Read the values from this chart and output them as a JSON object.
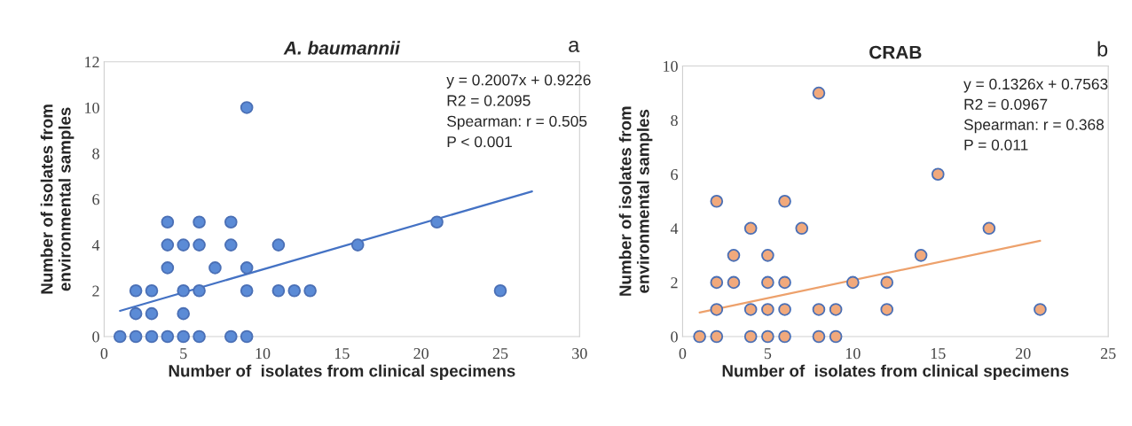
{
  "chart_data": [
    {
      "type": "scatter",
      "title": "A. baumannii",
      "xlabel": "Number of  isolates from clinical specimens",
      "ylabel": "Number of isolates from\nenvironmental samples",
      "annotations": [
        "y = 0.2007x + 0.9226",
        "R2 = 0.2095",
        "Spearman: r = 0.505",
        "P < 0.001",
        "a"
      ],
      "series": [
        {
          "color": "#5b8bd6",
          "marker": "circle",
          "x": [
            1,
            2,
            3,
            4,
            5,
            6,
            8,
            9,
            2,
            3,
            5,
            2,
            3,
            5,
            6,
            9,
            11,
            12,
            13,
            25,
            4,
            7,
            9,
            4,
            5,
            6,
            8,
            11,
            16,
            4,
            6,
            8,
            21,
            9
          ],
          "values": [
            0,
            0,
            0,
            0,
            0,
            0,
            0,
            0,
            1,
            1,
            1,
            2,
            2,
            2,
            2,
            2,
            2,
            2,
            2,
            2,
            3,
            3,
            3,
            4,
            4,
            4,
            4,
            4,
            4,
            5,
            5,
            5,
            5,
            10
          ]
        },
        {
          "type": "line",
          "color": "#4472c4",
          "marker": "none",
          "x": [
            1,
            27
          ],
          "values": [
            1.12,
            6.34
          ]
        }
      ],
      "xlim": [
        0,
        30
      ],
      "ylim": [
        0,
        12
      ],
      "xticks": [
        0,
        5,
        10,
        15,
        20,
        25,
        30
      ],
      "yticks": [
        0,
        2,
        4,
        6,
        8,
        10,
        12
      ],
      "grid": false
    },
    {
      "type": "scatter",
      "title": "CRAB",
      "xlabel": "Number of  isolates from clinical specimens",
      "ylabel": "Number of isolates from\nenvironmental samples",
      "annotations": [
        "y = 0.1326x + 0.7563",
        "R2 = 0.0967",
        "Spearman: r = 0.368",
        "P = 0.011",
        "b"
      ],
      "series": [
        {
          "color": "#f1a97c",
          "marker": "circle",
          "x": [
            1,
            2,
            4,
            5,
            6,
            8,
            9,
            2,
            4,
            5,
            6,
            8,
            9,
            12,
            21,
            2,
            3,
            5,
            6,
            10,
            12,
            3,
            5,
            14,
            4,
            7,
            18,
            2,
            6,
            15,
            8
          ],
          "values": [
            0,
            0,
            0,
            0,
            0,
            0,
            0,
            1,
            1,
            1,
            1,
            1,
            1,
            1,
            1,
            2,
            2,
            2,
            2,
            2,
            2,
            3,
            3,
            3,
            4,
            4,
            4,
            5,
            5,
            6,
            9
          ]
        },
        {
          "type": "line",
          "color": "#eda16c",
          "marker": "none",
          "x": [
            1,
            21
          ],
          "values": [
            0.89,
            3.54
          ]
        }
      ],
      "xlim": [
        0,
        25
      ],
      "ylim": [
        0,
        10
      ],
      "xticks": [
        0,
        5,
        10,
        15,
        20,
        25
      ],
      "yticks": [
        0,
        2,
        4,
        6,
        8,
        10
      ],
      "grid": false
    }
  ]
}
